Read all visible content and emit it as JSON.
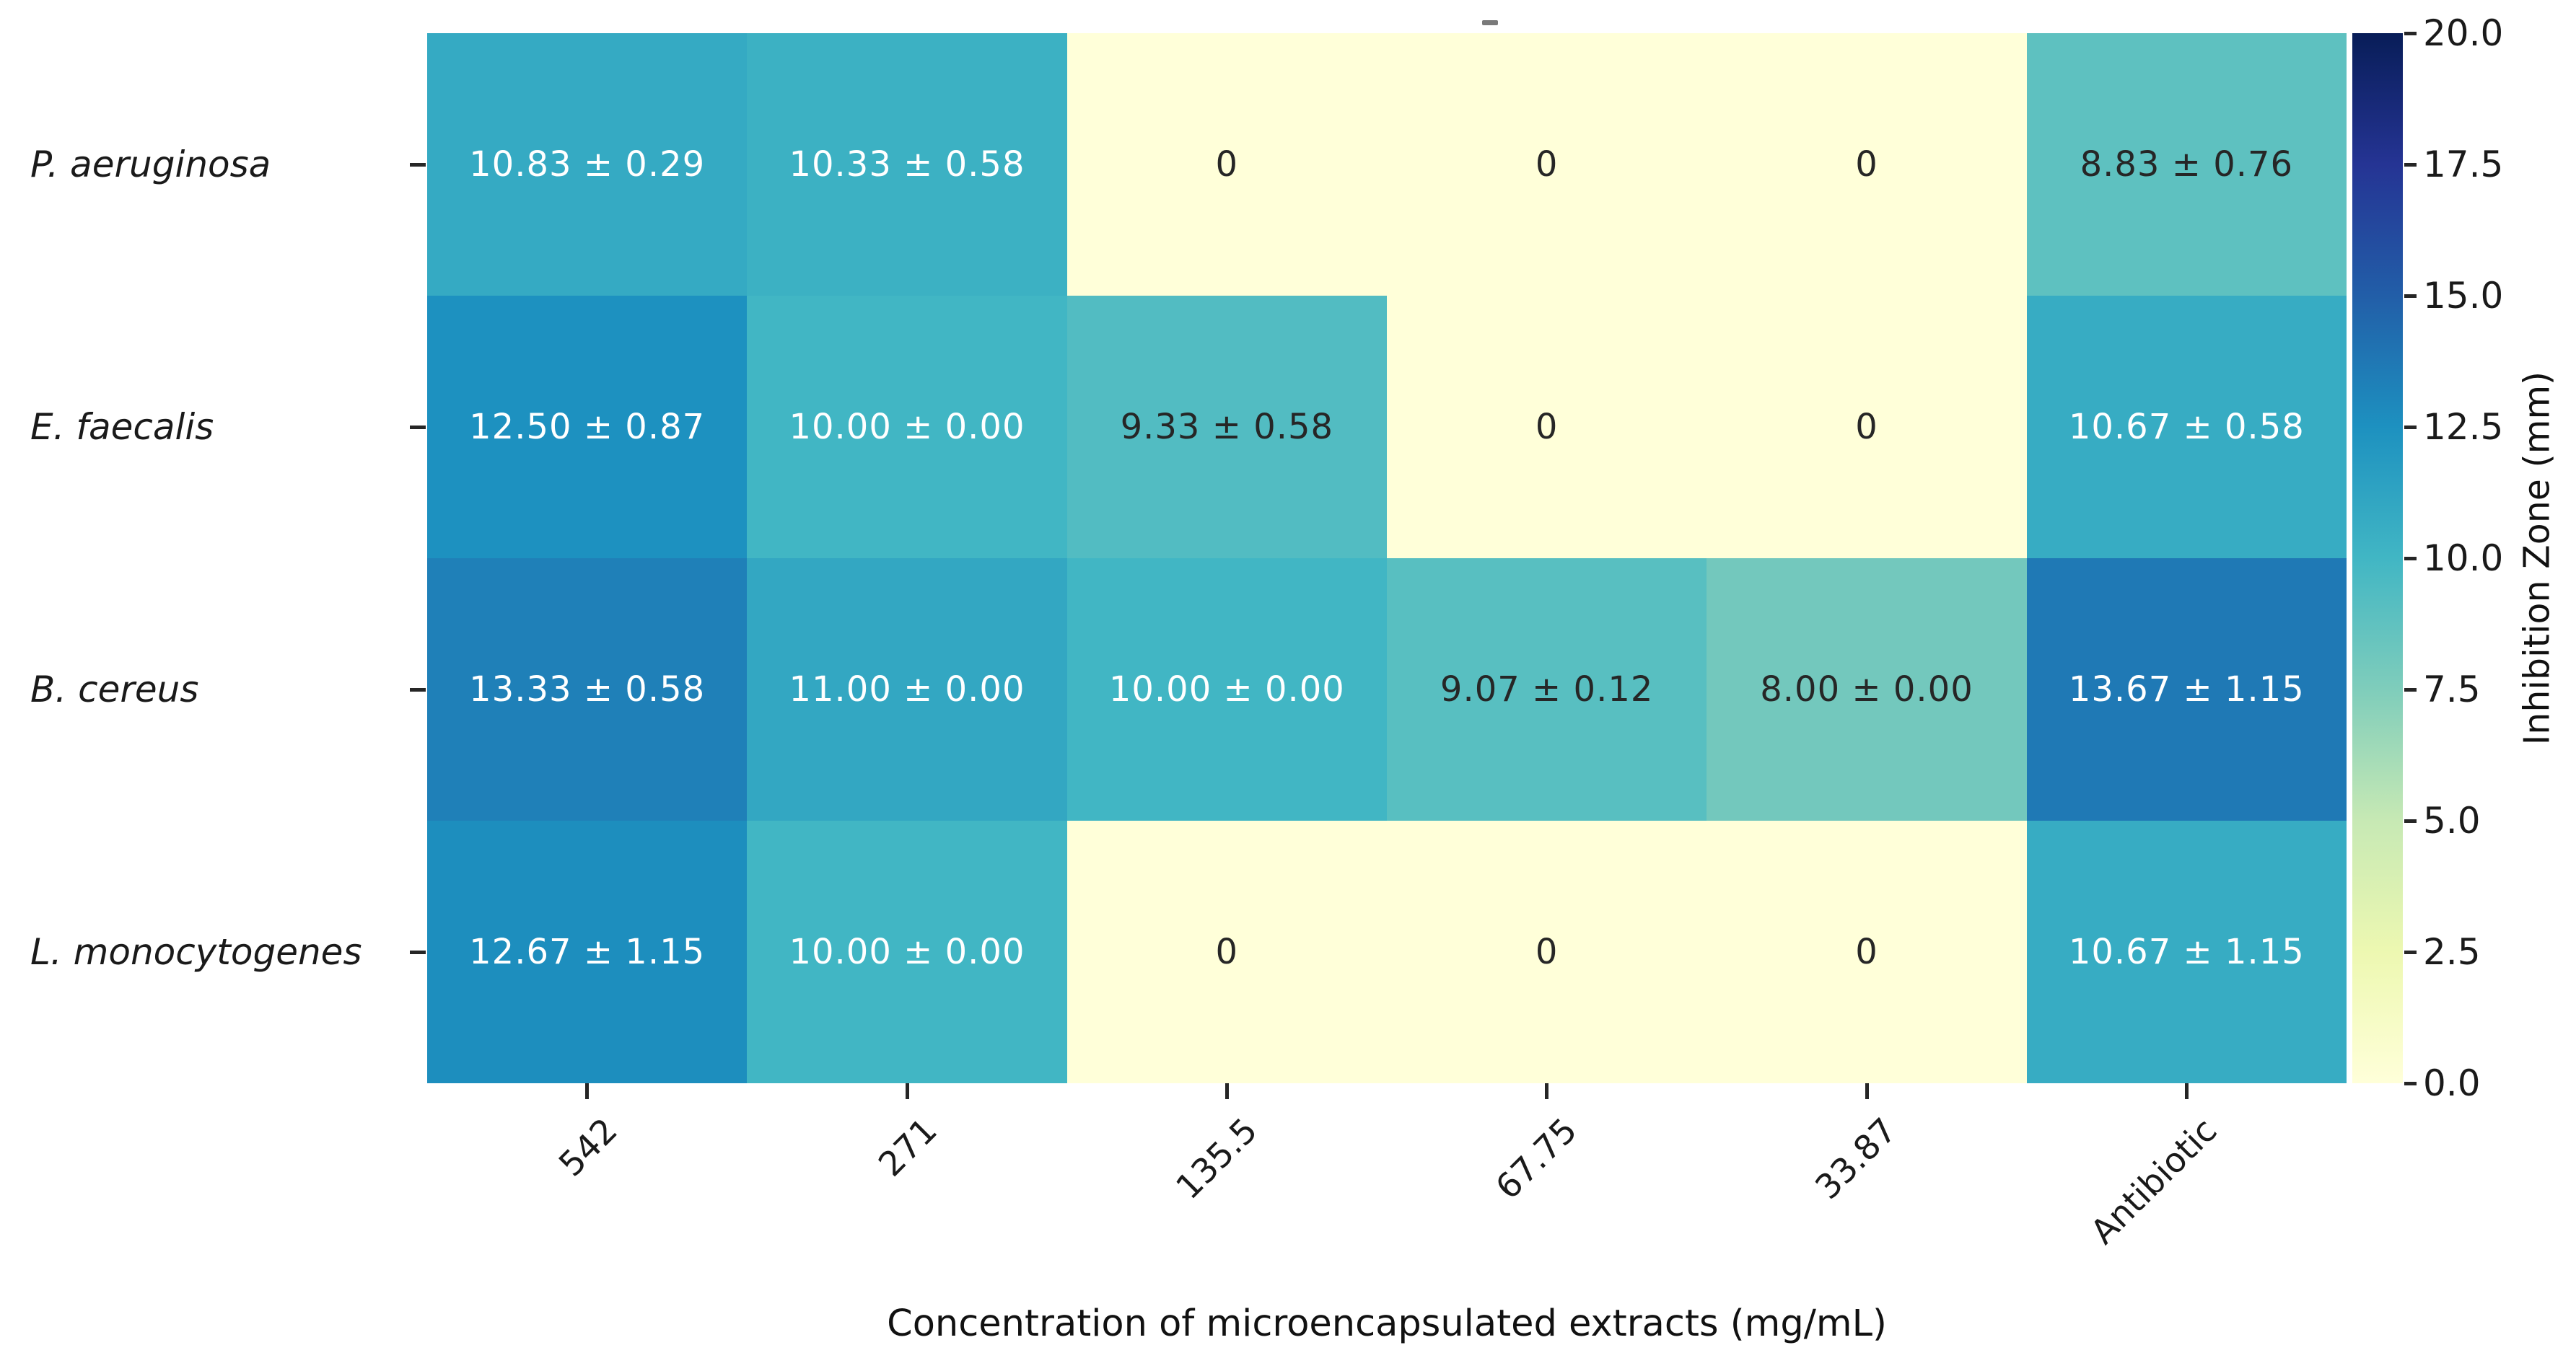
{
  "figure": {
    "background": "#ffffff",
    "axis_text_color": "#1a1a1a",
    "tick_color": "#262626"
  },
  "chart_data": {
    "type": "heatmap",
    "xlabel": "Concentration of microencapsulated extracts (mg/mL)",
    "rows": [
      "P. aeruginosa",
      "E. faecalis",
      "B. cereus",
      "L. monocytogenes"
    ],
    "columns": [
      "542",
      "271",
      "135.5",
      "67.75",
      "33.87",
      "Antibiotic"
    ],
    "values": [
      [
        10.83,
        10.33,
        0,
        0,
        0,
        8.83
      ],
      [
        12.5,
        10.0,
        9.33,
        0,
        0,
        10.67
      ],
      [
        13.33,
        11.0,
        10.0,
        9.07,
        8.0,
        13.67
      ],
      [
        12.67,
        10.0,
        0,
        0,
        0,
        10.67
      ]
    ],
    "cell_labels": [
      [
        "10.83 ± 0.29",
        "10.33 ± 0.58",
        "0",
        "0",
        "0",
        "8.83 ± 0.76"
      ],
      [
        "12.50 ± 0.87",
        "10.00 ± 0.00",
        "9.33 ± 0.58",
        "0",
        "0",
        "10.67 ± 0.58"
      ],
      [
        "13.33 ± 0.58",
        "11.00 ± 0.00",
        "10.00 ± 0.00",
        "9.07 ± 0.12",
        "8.00 ± 0.00",
        "13.67 ± 1.15"
      ],
      [
        "12.67 ± 1.15",
        "10.00 ± 0.00",
        "0",
        "0",
        "0",
        "10.67 ± 1.15"
      ]
    ],
    "vmin": 0,
    "vmax": 20,
    "colormap_name": "YlGnBu",
    "colormap_stops": [
      "#ffffd9",
      "#edf8b1",
      "#c7e9b4",
      "#7fcdbb",
      "#41b6c4",
      "#1d91c0",
      "#225ea8",
      "#253494",
      "#081d58"
    ],
    "annotation_light_text": "#ffffff",
    "annotation_dark_text": "#262626",
    "grid": false,
    "colorbar": {
      "label": "Inhibition Zone (mm)",
      "tick_labels": [
        "20.0",
        "17.5",
        "15.0",
        "12.5",
        "10.0",
        "7.5",
        "5.0",
        "2.5",
        "0.0"
      ],
      "position": "right"
    }
  }
}
